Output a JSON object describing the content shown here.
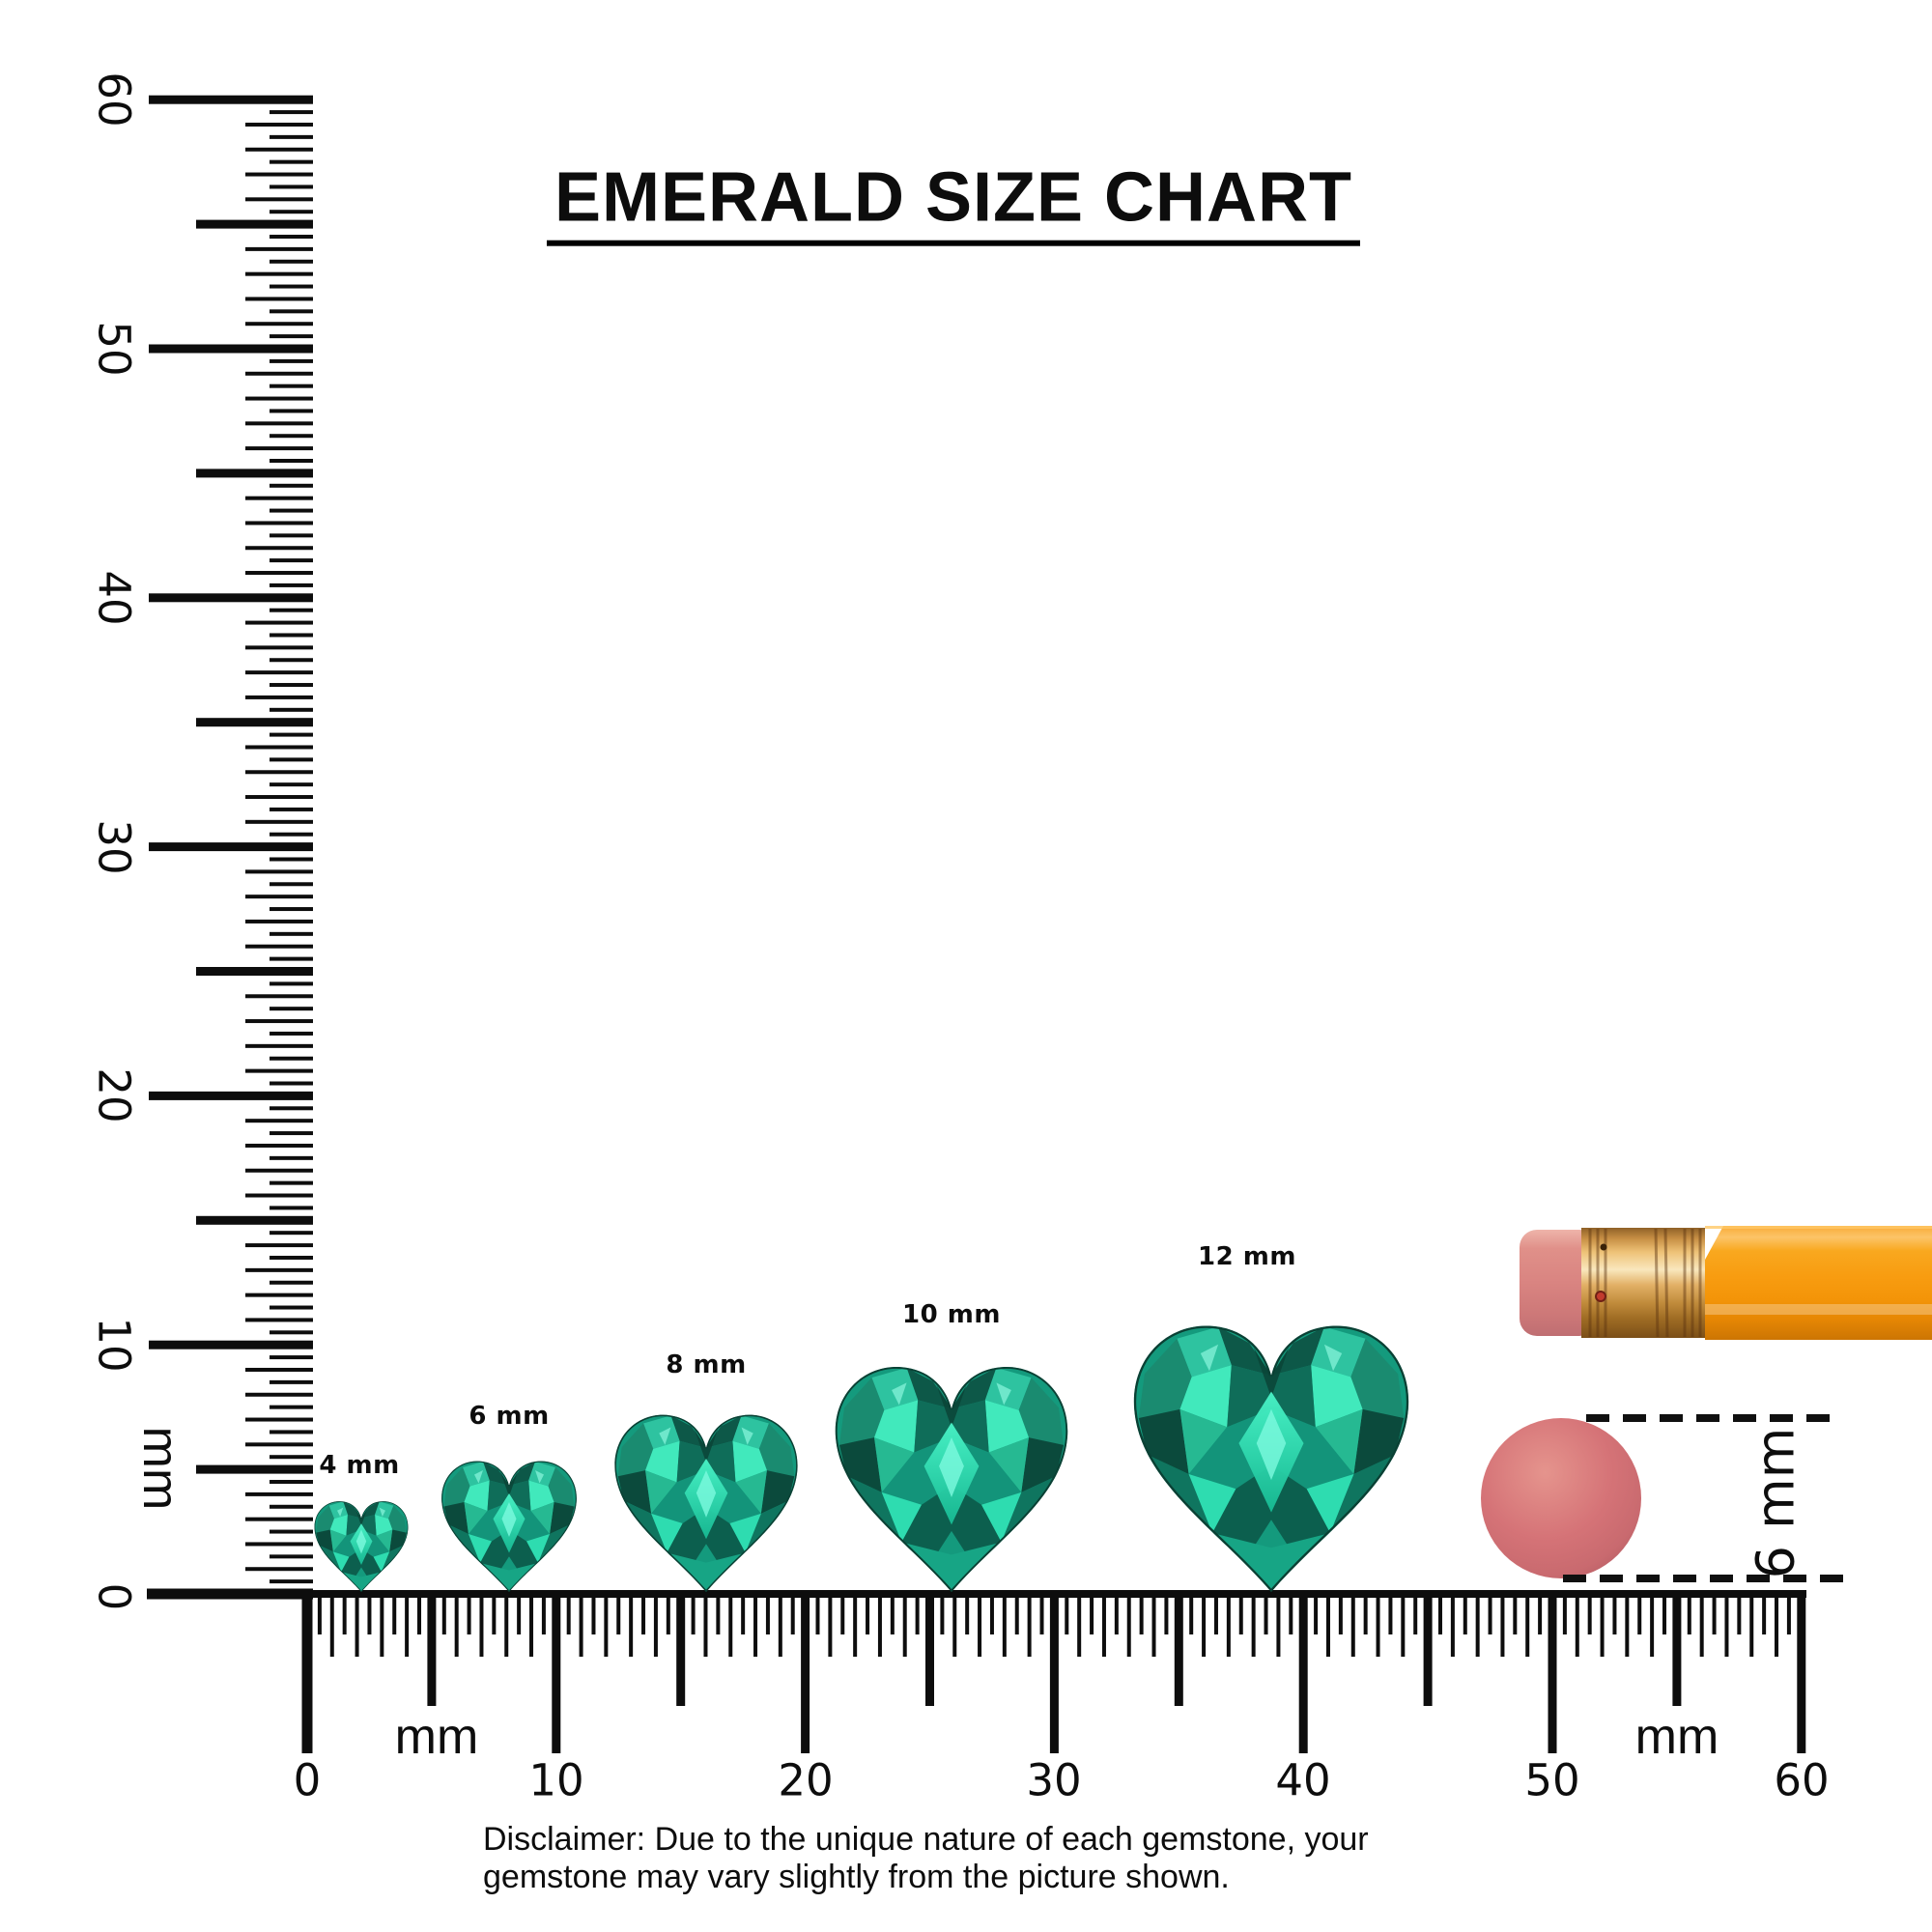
{
  "title": "EMERALD SIZE CHART",
  "rulers": {
    "vertical": {
      "unit": "mm",
      "labels": [
        "0",
        "10",
        "20",
        "30",
        "40",
        "50",
        "60"
      ]
    },
    "horizontal": {
      "unit_left": "mm",
      "unit_right": "mm",
      "labels": [
        "0",
        "10",
        "20",
        "30",
        "40",
        "50",
        "60"
      ]
    }
  },
  "gems": [
    {
      "label": "4 mm",
      "size_mm": 4
    },
    {
      "label": "6 mm",
      "size_mm": 6
    },
    {
      "label": "8 mm",
      "size_mm": 8
    },
    {
      "label": "10 mm",
      "size_mm": 10
    },
    {
      "label": "12 mm",
      "size_mm": 12
    }
  ],
  "eraser": {
    "label": "6 mm",
    "size_mm": 6
  },
  "disclaimer": "Disclaimer: Due to the unique nature of each gemstone, your gemstone may vary slightly from the picture shown.",
  "colors": {
    "emerald_bright": "#3df0c2",
    "emerald_mid": "#149a7d",
    "emerald_dark": "#0b5848",
    "pencil_orange": "#f89c10",
    "pencil_ferrule_brass": "#d9a254",
    "pencil_eraser_pink": "#d98481",
    "round_eraser_pink": "#d57377",
    "ink": "#0d0d0d"
  }
}
